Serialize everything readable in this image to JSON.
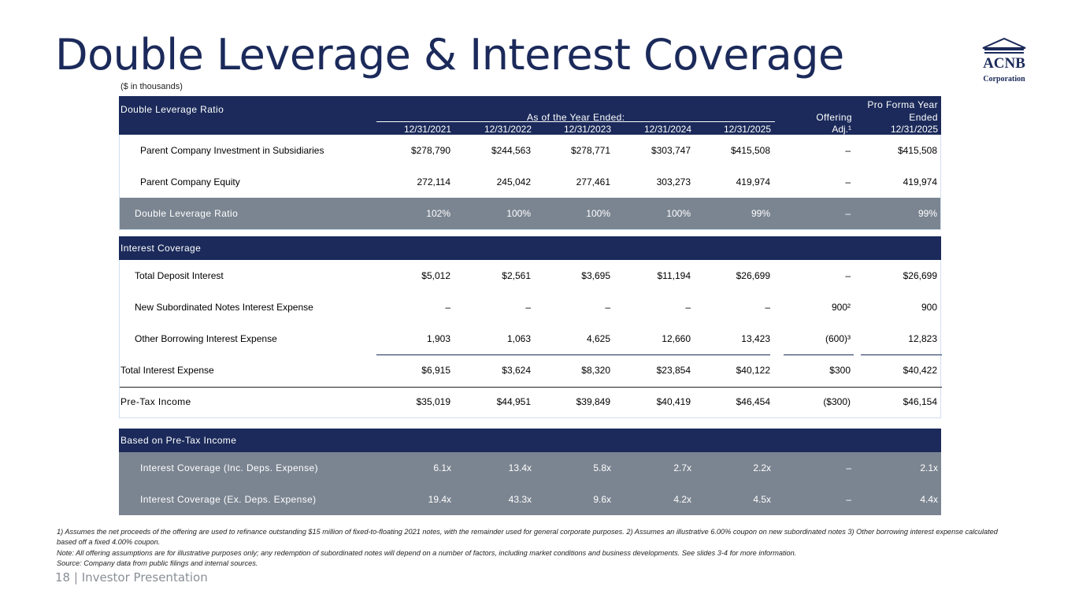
{
  "title": "Double Leverage & Interest Coverage",
  "units_note": "($ in thousands)",
  "logo": {
    "line1": "ACNB",
    "line2": "Corporation"
  },
  "columns": [
    "12/31/2021",
    "12/31/2022",
    "12/31/2023",
    "12/31/2024",
    "12/31/2025",
    "Adj.¹",
    "12/31/2025"
  ],
  "header": {
    "section_label": "Double Leverage Ratio",
    "group_label": "As of the Year Ended:",
    "offering_label": "Offering",
    "proforma_line1": "Pro Forma Year",
    "proforma_line2": "Ended"
  },
  "double_leverage_rows": [
    {
      "label": "Parent Company Investment in Subsidiaries",
      "values": [
        "$278,790",
        "$244,563",
        "$278,771",
        "$303,747",
        "$415,508",
        "–",
        "$415,508"
      ]
    },
    {
      "label": "Parent Company Equity",
      "values": [
        "272,114",
        "245,042",
        "277,461",
        "303,273",
        "419,974",
        "–",
        "419,974"
      ]
    },
    {
      "label": "Double Leverage Ratio",
      "values": [
        "102%",
        "100%",
        "100%",
        "100%",
        "99%",
        "–",
        "99%"
      ]
    }
  ],
  "interest_section_label": "Interest Coverage",
  "interest_rows": [
    {
      "label": "Total Deposit Interest",
      "values": [
        "$5,012",
        "$2,561",
        "$3,695",
        "$11,194",
        "$26,699",
        "–",
        "$26,699"
      ]
    },
    {
      "label": "New Subordinated Notes Interest Expense",
      "values": [
        "–",
        "–",
        "–",
        "–",
        "–",
        "900²",
        "900"
      ]
    },
    {
      "label": "Other Borrowing Interest Expense",
      "values": [
        "1,903",
        "1,063",
        "4,625",
        "12,660",
        "13,423",
        "(600)³",
        "12,823"
      ]
    },
    {
      "label": "Total Interest Expense",
      "values": [
        "$6,915",
        "$3,624",
        "$8,320",
        "$23,854",
        "$40,122",
        "$300",
        "$40,422"
      ]
    },
    {
      "label": "Pre-Tax Income",
      "values": [
        "$35,019",
        "$44,951",
        "$39,849",
        "$40,419",
        "$46,454",
        "($300)",
        "$46,154"
      ]
    }
  ],
  "coverage_section_label": "Based on Pre-Tax Income",
  "coverage_rows": [
    {
      "label": "Interest Coverage (Inc. Deps. Expense)",
      "values": [
        "6.1x",
        "13.4x",
        "5.8x",
        "2.7x",
        "2.2x",
        "–",
        "2.1x"
      ]
    },
    {
      "label": "Interest Coverage (Ex. Deps. Expense)",
      "values": [
        "19.4x",
        "43.3x",
        "9.6x",
        "4.2x",
        "4.5x",
        "–",
        "4.4x"
      ]
    }
  ],
  "footnotes": [
    "1) Assumes the net proceeds of the offering are used to refinance outstanding $15 million of fixed-to-floating 2021 notes, with the remainder used for general corporate purposes. 2) Assumes an illustrative 6.00% coupon on new subordinated notes 3) Other borrowing interest expense calculated based off a fixed 4.00% coupon.",
    "Note: All offering assumptions are for illustrative purposes only; any redemption of subordinated notes will depend on a number of factors, including market conditions and business developments. See slides 3-4 for more information.",
    "Source: Company data from public filings and internal sources."
  ],
  "page_number": "18",
  "page_label": "| Investor Presentation"
}
